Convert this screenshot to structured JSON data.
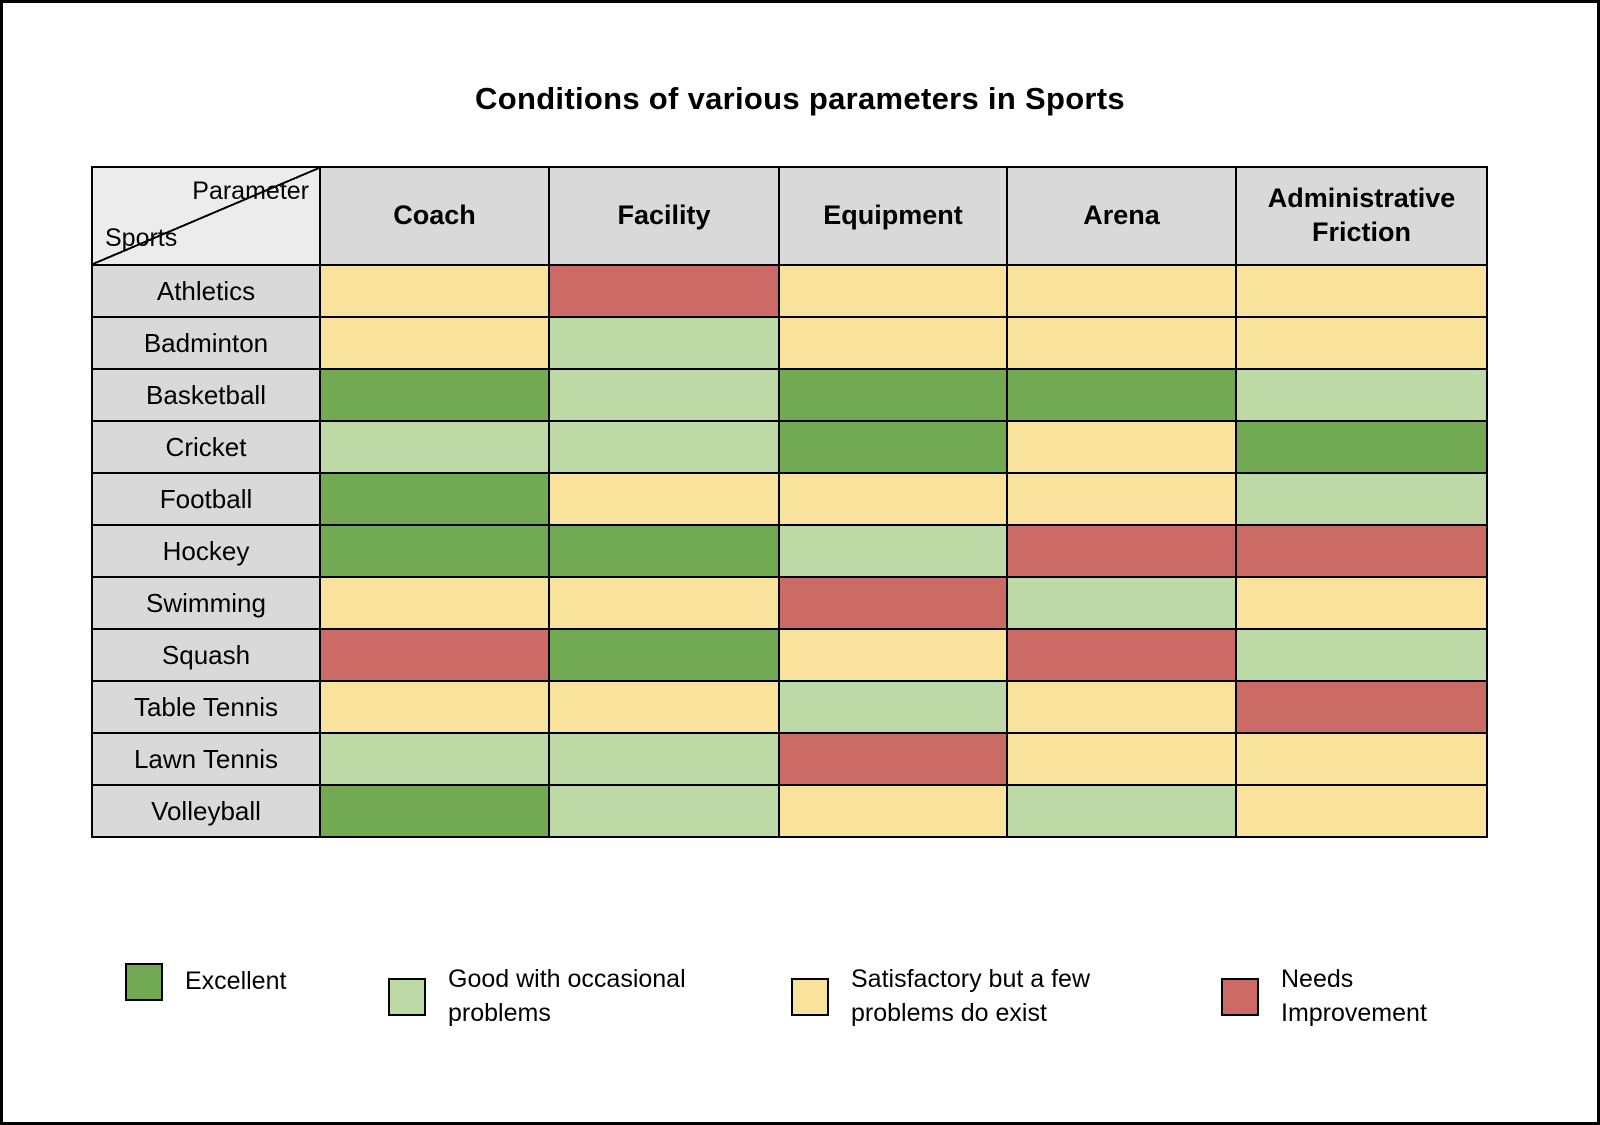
{
  "title": "Conditions of various parameters in Sports",
  "colors": {
    "excellent": "#72A953",
    "good": "#BCD9A6",
    "satisfactory": "#F9E29C",
    "needs_improvement": "#CC6A66",
    "header_bg": "#D9D9D9",
    "corner_bg": "#ECECEC",
    "border": "#000000"
  },
  "table": {
    "corner": {
      "top_label": "Parameter",
      "bottom_label": "Sports"
    },
    "columns": [
      "Coach",
      "Facility",
      "Equipment",
      "Arena",
      "Administrative Friction"
    ],
    "rows": [
      "Athletics",
      "Badminton",
      "Basketball",
      "Cricket",
      "Football",
      "Hockey",
      "Swimming",
      "Squash",
      "Table Tennis",
      "Lawn Tennis",
      "Volleyball"
    ]
  },
  "legend": [
    {
      "key": "excellent",
      "label": "Excellent"
    },
    {
      "key": "good",
      "label": "Good with occasional problems"
    },
    {
      "key": "satisfactory",
      "label": "Satisfactory but a few problems do exist"
    },
    {
      "key": "needs_improvement",
      "label": "Needs Improvement"
    }
  ],
  "chart_data": {
    "type": "heatmap",
    "title": "Conditions of various parameters in Sports",
    "x_labels": [
      "Coach",
      "Facility",
      "Equipment",
      "Arena",
      "Administrative Friction"
    ],
    "y_labels": [
      "Athletics",
      "Badminton",
      "Basketball",
      "Cricket",
      "Football",
      "Hockey",
      "Swimming",
      "Squash",
      "Table Tennis",
      "Lawn Tennis",
      "Volleyball"
    ],
    "scale": {
      "excellent": "Excellent",
      "good": "Good with occasional problems",
      "satisfactory": "Satisfactory but a few problems do exist",
      "needs_improvement": "Needs Improvement"
    },
    "legend_position": "bottom",
    "values": [
      [
        "satisfactory",
        "needs_improvement",
        "satisfactory",
        "satisfactory",
        "satisfactory"
      ],
      [
        "satisfactory",
        "good",
        "satisfactory",
        "satisfactory",
        "satisfactory"
      ],
      [
        "excellent",
        "good",
        "excellent",
        "excellent",
        "good"
      ],
      [
        "good",
        "good",
        "excellent",
        "satisfactory",
        "excellent"
      ],
      [
        "excellent",
        "satisfactory",
        "satisfactory",
        "satisfactory",
        "good"
      ],
      [
        "excellent",
        "excellent",
        "good",
        "needs_improvement",
        "needs_improvement"
      ],
      [
        "satisfactory",
        "satisfactory",
        "needs_improvement",
        "good",
        "satisfactory"
      ],
      [
        "needs_improvement",
        "excellent",
        "satisfactory",
        "needs_improvement",
        "good"
      ],
      [
        "satisfactory",
        "satisfactory",
        "good",
        "satisfactory",
        "needs_improvement"
      ],
      [
        "good",
        "good",
        "needs_improvement",
        "satisfactory",
        "satisfactory"
      ],
      [
        "excellent",
        "good",
        "satisfactory",
        "good",
        "satisfactory"
      ]
    ]
  }
}
